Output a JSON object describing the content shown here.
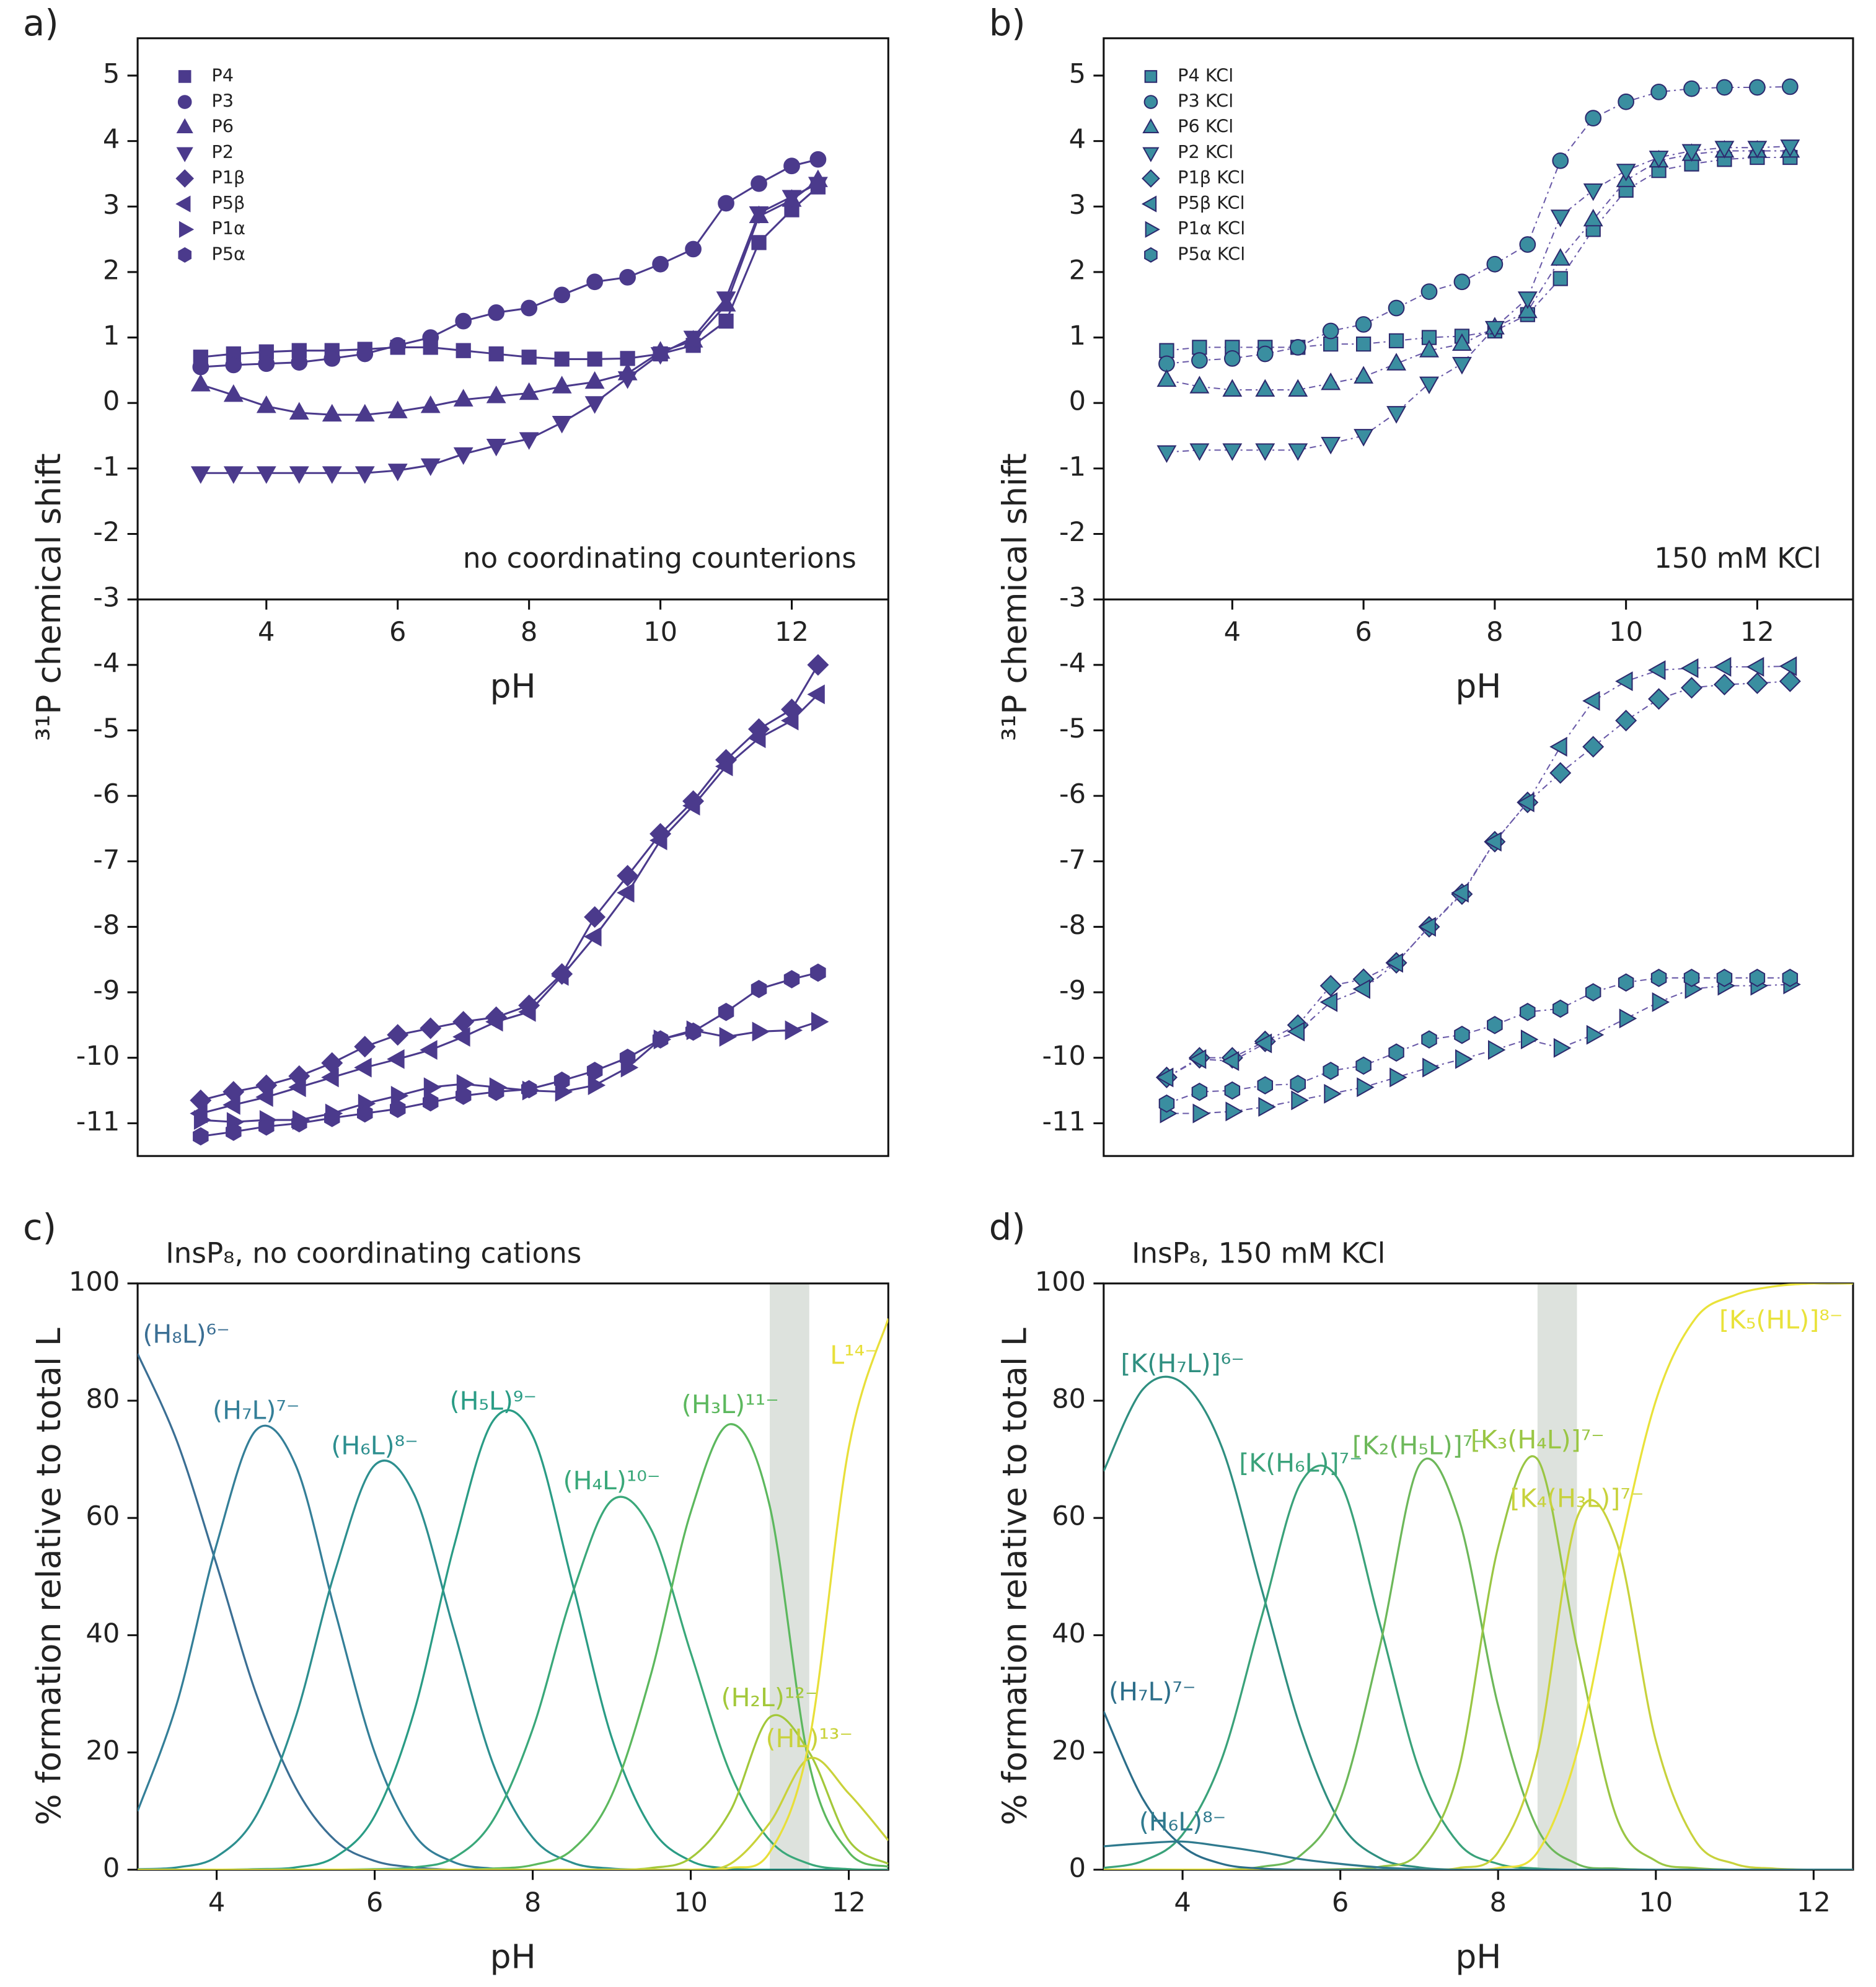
{
  "chart_data": [
    {
      "type": "line",
      "panel_label": "a)",
      "y_label": "³¹P chemical shift",
      "x_label": "pH",
      "annotation": "no coordinating counterions",
      "xlim": [
        2.04,
        13.47
      ],
      "ylim": [
        -11.5,
        5.57
      ],
      "xticks": [
        4,
        6,
        8,
        10,
        12
      ],
      "yticks": [
        -11,
        -10,
        -9,
        -8,
        -7,
        -6,
        -5,
        -4,
        -3,
        -2,
        -1,
        0,
        1,
        2,
        3,
        4,
        5
      ],
      "xaxis_crossing": -3,
      "legend": "upper left",
      "line_color": "#4b3a8c",
      "line_style": "solid",
      "marker_edge": "#4b3a8c",
      "x": [
        3,
        3.5,
        4,
        4.5,
        5,
        5.5,
        6,
        6.5,
        7,
        7.5,
        8,
        8.5,
        9,
        9.5,
        10,
        10.5,
        11,
        11.5,
        12,
        12.4
      ],
      "series": [
        {
          "name": "P4",
          "marker": "square",
          "color": "#4b3a8c",
          "values": [
            0.7,
            0.75,
            0.78,
            0.8,
            0.8,
            0.82,
            0.85,
            0.85,
            0.8,
            0.75,
            0.7,
            0.67,
            0.67,
            0.68,
            0.75,
            0.88,
            1.25,
            2.45,
            2.95,
            3.3
          ]
        },
        {
          "name": "P3",
          "marker": "circle",
          "color": "#4b3a8c",
          "values": [
            0.55,
            0.58,
            0.6,
            0.62,
            0.68,
            0.75,
            0.88,
            1.0,
            1.25,
            1.38,
            1.45,
            1.65,
            1.85,
            1.92,
            2.12,
            2.35,
            3.05,
            3.35,
            3.62,
            3.72
          ]
        },
        {
          "name": "P6",
          "marker": "triangle-up",
          "color": "#4b3a8c",
          "values": [
            0.28,
            0.12,
            -0.05,
            -0.15,
            -0.18,
            -0.18,
            -0.13,
            -0.05,
            0.05,
            0.1,
            0.15,
            0.25,
            0.32,
            0.45,
            0.78,
            0.95,
            1.5,
            2.85,
            3.1,
            3.4
          ]
        },
        {
          "name": "P2",
          "marker": "triangle-down",
          "color": "#4b3a8c",
          "values": [
            -1.07,
            -1.07,
            -1.07,
            -1.07,
            -1.07,
            -1.07,
            -1.03,
            -0.95,
            -0.78,
            -0.65,
            -0.55,
            -0.3,
            0.0,
            0.38,
            0.75,
            1.0,
            1.6,
            2.9,
            3.15,
            3.35
          ]
        },
        {
          "name": "P1β",
          "marker": "diamond",
          "color": "#4b3a8c",
          "values": [
            -10.65,
            -10.52,
            -10.42,
            -10.28,
            -10.08,
            -9.83,
            -9.65,
            -9.55,
            -9.45,
            -9.38,
            -9.2,
            -8.72,
            -7.85,
            -7.22,
            -6.58,
            -6.08,
            -5.45,
            -4.98,
            -4.68,
            -4.0
          ]
        },
        {
          "name": "P5β",
          "marker": "triangle-left",
          "color": "#4b3a8c",
          "values": [
            -10.85,
            -10.72,
            -10.6,
            -10.45,
            -10.3,
            -10.15,
            -10.02,
            -9.88,
            -9.68,
            -9.45,
            -9.3,
            -8.75,
            -8.15,
            -7.48,
            -6.68,
            -6.15,
            -5.55,
            -5.12,
            -4.85,
            -4.45
          ]
        },
        {
          "name": "P1α",
          "marker": "triangle-right",
          "color": "#4b3a8c",
          "values": [
            -10.95,
            -10.98,
            -10.95,
            -10.95,
            -10.85,
            -10.7,
            -10.58,
            -10.45,
            -10.4,
            -10.45,
            -10.5,
            -10.52,
            -10.42,
            -10.15,
            -9.72,
            -9.58,
            -9.68,
            -9.6,
            -9.58,
            -9.45
          ]
        },
        {
          "name": "P5α",
          "marker": "hexagon",
          "color": "#4b3a8c",
          "values": [
            -11.2,
            -11.13,
            -11.05,
            -11.0,
            -10.92,
            -10.85,
            -10.78,
            -10.68,
            -10.58,
            -10.52,
            -10.48,
            -10.35,
            -10.2,
            -10.0,
            -9.72,
            -9.6,
            -9.3,
            -8.95,
            -8.8,
            -8.7
          ]
        }
      ]
    },
    {
      "type": "line",
      "panel_label": "b)",
      "y_label": "³¹P chemical shift",
      "x_label": "pH",
      "annotation": "150 mM KCl",
      "xlim": [
        2.04,
        13.46
      ],
      "ylim": [
        -11.5,
        5.57
      ],
      "xticks": [
        4,
        6,
        8,
        10,
        12
      ],
      "yticks": [
        -11,
        -10,
        -9,
        -8,
        -7,
        -6,
        -5,
        -4,
        -3,
        -2,
        -1,
        0,
        1,
        2,
        3,
        4,
        5
      ],
      "xaxis_crossing": -3,
      "legend": "upper left",
      "line_color": "#6a5aa8",
      "line_style": "dash-dot",
      "marker_edge": "#2d2a6e",
      "x": [
        3,
        3.5,
        4,
        4.5,
        5,
        5.5,
        6,
        6.5,
        7,
        7.5,
        8,
        8.5,
        9,
        9.5,
        10,
        10.5,
        11,
        11.5,
        12,
        12.5
      ],
      "series": [
        {
          "name": "P4 KCl",
          "marker": "square",
          "color": "#3a8ea0",
          "values": [
            0.8,
            0.85,
            0.85,
            0.85,
            0.85,
            0.9,
            0.9,
            0.95,
            1.0,
            1.02,
            1.1,
            1.35,
            1.9,
            2.65,
            3.25,
            3.55,
            3.65,
            3.72,
            3.75,
            3.75
          ]
        },
        {
          "name": "P3 KCl",
          "marker": "circle",
          "color": "#3a8ea0",
          "values": [
            0.6,
            0.65,
            0.68,
            0.75,
            0.85,
            1.1,
            1.2,
            1.45,
            1.7,
            1.85,
            2.12,
            2.42,
            3.7,
            4.35,
            4.6,
            4.75,
            4.8,
            4.82,
            4.82,
            4.83
          ]
        },
        {
          "name": "P6 KCl",
          "marker": "triangle-up",
          "color": "#3a8ea0",
          "values": [
            0.35,
            0.25,
            0.2,
            0.2,
            0.2,
            0.3,
            0.4,
            0.6,
            0.8,
            0.9,
            1.15,
            1.4,
            2.2,
            2.8,
            3.4,
            3.7,
            3.8,
            3.85,
            3.85,
            3.85
          ]
        },
        {
          "name": "P2 KCl",
          "marker": "triangle-down",
          "color": "#3a8ea0",
          "values": [
            -0.75,
            -0.72,
            -0.72,
            -0.72,
            -0.72,
            -0.62,
            -0.5,
            -0.15,
            0.3,
            0.6,
            1.15,
            1.6,
            2.85,
            3.25,
            3.55,
            3.75,
            3.85,
            3.9,
            3.9,
            3.92
          ]
        },
        {
          "name": "P1β KCl",
          "marker": "diamond",
          "color": "#3a8ea0",
          "values": [
            -10.3,
            -10.0,
            -10.0,
            -9.75,
            -9.5,
            -8.9,
            -8.8,
            -8.55,
            -8.0,
            -7.5,
            -6.7,
            -6.1,
            -5.65,
            -5.25,
            -4.85,
            -4.52,
            -4.35,
            -4.3,
            -4.28,
            -4.25
          ]
        },
        {
          "name": "P5β KCl",
          "marker": "triangle-left",
          "color": "#3a8ea0",
          "values": [
            -10.3,
            -10.02,
            -10.05,
            -9.78,
            -9.6,
            -9.15,
            -8.95,
            -8.55,
            -8.0,
            -7.48,
            -6.7,
            -6.1,
            -5.25,
            -4.55,
            -4.25,
            -4.08,
            -4.05,
            -4.03,
            -4.03,
            -4.02
          ]
        },
        {
          "name": "P1α KCl",
          "marker": "triangle-right",
          "color": "#3a8ea0",
          "values": [
            -10.85,
            -10.85,
            -10.82,
            -10.75,
            -10.65,
            -10.55,
            -10.45,
            -10.3,
            -10.15,
            -10.02,
            -9.88,
            -9.72,
            -9.85,
            -9.65,
            -9.4,
            -9.15,
            -8.95,
            -8.9,
            -8.9,
            -8.88
          ]
        },
        {
          "name": "P5α KCl",
          "marker": "hexagon",
          "color": "#3a8ea0",
          "values": [
            -10.7,
            -10.52,
            -10.5,
            -10.42,
            -10.4,
            -10.2,
            -10.12,
            -9.92,
            -9.72,
            -9.65,
            -9.5,
            -9.3,
            -9.25,
            -9.0,
            -8.85,
            -8.78,
            -8.78,
            -8.78,
            -8.78,
            -8.78
          ]
        }
      ]
    },
    {
      "type": "line",
      "panel_label": "c)",
      "title": "InsP₈, no coordinating cations",
      "y_label": "% formation relative to total L",
      "x_label": "pH",
      "xlim": [
        3,
        12.5
      ],
      "ylim": [
        0,
        100
      ],
      "xticks": [
        4,
        6,
        8,
        10,
        12
      ],
      "yticks": [
        0,
        20,
        40,
        60,
        80,
        100
      ],
      "highlight_range": [
        11,
        11.5
      ],
      "highlight_color": "#dde2dd",
      "x": [
        3,
        3.5,
        4,
        4.5,
        5,
        5.5,
        6,
        6.5,
        7,
        7.5,
        8,
        8.5,
        9,
        9.5,
        10,
        10.5,
        11,
        11.5,
        12,
        12.5
      ],
      "series": [
        {
          "name": "(H₈L)⁶⁻",
          "color": "#3b6f94",
          "values": [
            88,
            73,
            52,
            30,
            14,
            5,
            1.5,
            0.4,
            0,
            0,
            0,
            0,
            0,
            0,
            0,
            0,
            0,
            0,
            0,
            0
          ]
        },
        {
          "name": "(H₇L)⁷⁻",
          "color": "#347f98",
          "values": [
            10,
            28.5,
            55.5,
            75,
            69,
            44,
            20,
            6,
            1.3,
            0.2,
            0,
            0,
            0,
            0,
            0,
            0,
            0,
            0,
            0,
            0
          ]
        },
        {
          "name": "(H₆L)⁸⁻",
          "color": "#2d8f8f",
          "values": [
            0.1,
            0.4,
            2.2,
            9.2,
            26,
            51,
            69,
            64,
            41,
            18,
            5.5,
            1.2,
            0.2,
            0,
            0,
            0,
            0,
            0,
            0,
            0
          ]
        },
        {
          "name": "(H₅L)⁹⁻",
          "color": "#2a9c85",
          "values": [
            0,
            0,
            0,
            0.1,
            0.4,
            2.2,
            9.2,
            27,
            55,
            76.6,
            74,
            49,
            22.5,
            7.1,
            1.5,
            0.2,
            0,
            0,
            0,
            0
          ]
        },
        {
          "name": "(H₄L)¹⁰⁻",
          "color": "#3aa87a",
          "values": [
            0,
            0,
            0,
            0,
            0,
            0,
            0.1,
            0.4,
            2,
            8.5,
            24,
            47,
            63,
            58,
            37,
            16.5,
            5,
            1,
            0.1,
            0
          ]
        },
        {
          "name": "(H₃L)¹¹⁻",
          "color": "#5cb85e",
          "values": [
            0,
            0,
            0,
            0,
            0,
            0,
            0,
            0,
            0,
            0.2,
            0.8,
            3.4,
            12.7,
            33.5,
            61,
            76,
            62,
            18,
            3,
            0.5
          ]
        },
        {
          "name": "(H₂L)¹²⁻",
          "color": "#a3c83a",
          "values": [
            0,
            0,
            0,
            0,
            0,
            0,
            0,
            0,
            0,
            0,
            0,
            0,
            0,
            0.3,
            2,
            10,
            26,
            20,
            5,
            1
          ]
        },
        {
          "name": "(HL)¹³⁻",
          "color": "#c9d23a",
          "values": [
            0,
            0,
            0,
            0,
            0,
            0,
            0,
            0,
            0,
            0,
            0,
            0,
            0,
            0,
            0,
            1,
            8,
            19,
            13,
            5
          ]
        },
        {
          "name": "L¹⁴⁻",
          "color": "#e8df3a",
          "values": [
            0,
            0,
            0,
            0,
            0,
            0,
            0,
            0,
            0,
            0,
            0,
            0,
            0,
            0,
            0,
            0.3,
            3,
            22,
            72,
            94
          ]
        }
      ]
    },
    {
      "type": "line",
      "panel_label": "d)",
      "title": "InsP₈, 150 mM KCl",
      "y_label": "% formation relative to total L",
      "x_label": "pH",
      "xlim": [
        3,
        12.5
      ],
      "ylim": [
        0,
        100
      ],
      "xticks": [
        4,
        6,
        8,
        10,
        12
      ],
      "yticks": [
        0,
        20,
        40,
        60,
        80,
        100
      ],
      "highlight_range": [
        8.5,
        9
      ],
      "highlight_color": "#dde2dd",
      "x": [
        3,
        3.5,
        4,
        4.5,
        5,
        5.5,
        6,
        6.5,
        7,
        7.5,
        8,
        8.5,
        9,
        9.5,
        10,
        10.5,
        11,
        11.5,
        12,
        12.5
      ],
      "series": [
        {
          "name": "[K(H₇L)]⁶⁻",
          "color": "#2f8f80",
          "values": [
            68,
            82,
            83,
            72,
            48,
            24,
            8,
            2,
            0.4,
            0,
            0,
            0,
            0,
            0,
            0,
            0,
            0,
            0,
            0,
            0
          ]
        },
        {
          "name": "[K(H₆L)]⁷⁻",
          "color": "#3aa27a",
          "values": [
            0.3,
            1.5,
            6,
            19,
            43,
            66,
            66,
            42,
            17,
            4.5,
            1,
            0.2,
            0,
            0,
            0,
            0,
            0,
            0,
            0,
            0
          ]
        },
        {
          "name": "[K₂(H₅L)]⁷⁻",
          "color": "#6db85a",
          "values": [
            0,
            0,
            0,
            0,
            0.5,
            2.5,
            12,
            38,
            69,
            60,
            28,
            7,
            1,
            0.2,
            0,
            0,
            0,
            0,
            0,
            0
          ]
        },
        {
          "name": "[K₃(H₄L)]⁷⁻",
          "color": "#9ac644",
          "values": [
            0,
            0,
            0,
            0,
            0,
            0,
            0.1,
            0.5,
            3,
            17,
            55,
            70,
            38,
            9,
            1.5,
            0.3,
            0,
            0,
            0,
            0
          ]
        },
        {
          "name": "[K₄(H₃L)]⁷⁻",
          "color": "#c8d23c",
          "values": [
            0,
            0,
            0,
            0,
            0,
            0,
            0,
            0,
            0.1,
            0.3,
            3,
            20,
            60,
            56,
            22,
            5,
            1,
            0.2,
            0,
            0
          ]
        },
        {
          "name": "[K₅(HL)]⁸⁻",
          "color": "#e9e23a",
          "values": [
            0,
            0,
            0,
            0,
            0,
            0,
            0,
            0,
            0,
            0,
            0.3,
            3,
            20,
            52,
            80,
            94,
            98,
            99.5,
            100,
            100
          ]
        },
        {
          "name": "(H₇L)⁷⁻",
          "color": "#2c6e8a",
          "values": [
            27,
            12,
            4,
            1,
            0.2,
            0,
            0,
            0,
            0,
            0,
            0,
            0,
            0,
            0,
            0,
            0,
            0,
            0,
            0,
            0
          ]
        },
        {
          "name": "(H₆L)⁸⁻",
          "color": "#2f7a8e",
          "values": [
            4,
            4.5,
            4.8,
            4,
            3,
            1.8,
            1,
            0.4,
            0.1,
            0,
            0,
            0,
            0,
            0,
            0,
            0,
            0,
            0,
            0,
            0
          ]
        }
      ]
    }
  ]
}
